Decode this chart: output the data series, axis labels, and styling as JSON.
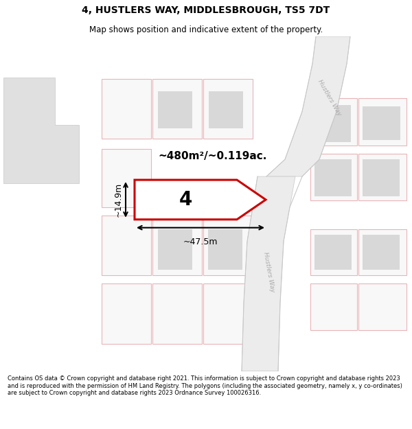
{
  "title_line1": "4, HUSTLERS WAY, MIDDLESBROUGH, TS5 7DT",
  "title_line2": "Map shows position and indicative extent of the property.",
  "area_text": "~480m²/~0.119ac.",
  "number_label": "4",
  "dim_width": "~47.5m",
  "dim_height": "~14.9m",
  "road_label": "Hustlers Way",
  "footer_text": "Contains OS data © Crown copyright and database right 2021. This information is subject to Crown copyright and database rights 2023 and is reproduced with the permission of HM Land Registry. The polygons (including the associated geometry, namely x, y co-ordinates) are subject to Crown copyright and database rights 2023 Ordnance Survey 100026316.",
  "bg_color": "#ffffff",
  "map_bg": "#ffffff",
  "grid_line_color": "#e8b4b8",
  "highlight_color": "#cc0000",
  "gray_block_color": "#d8d8d8",
  "road_fill": "#ececec",
  "road_edge": "#c8c8c8",
  "building_gray": "#d8d8d8",
  "title_fontsize": 10,
  "subtitle_fontsize": 8.5,
  "footer_fontsize": 6.0
}
